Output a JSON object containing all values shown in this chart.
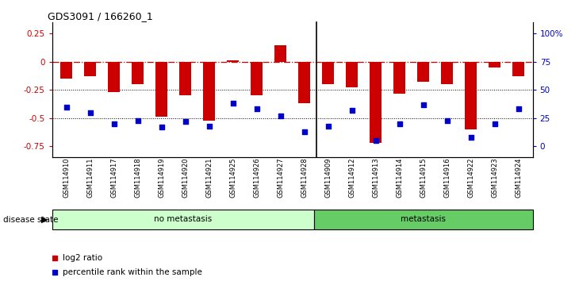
{
  "title": "GDS3091 / 166260_1",
  "samples": [
    "GSM114910",
    "GSM114911",
    "GSM114917",
    "GSM114918",
    "GSM114919",
    "GSM114920",
    "GSM114921",
    "GSM114925",
    "GSM114926",
    "GSM114927",
    "GSM114928",
    "GSM114909",
    "GSM114912",
    "GSM114913",
    "GSM114914",
    "GSM114915",
    "GSM114916",
    "GSM114922",
    "GSM114923",
    "GSM114924"
  ],
  "log2_ratio": [
    -0.15,
    -0.13,
    -0.27,
    -0.2,
    -0.49,
    -0.3,
    -0.52,
    0.01,
    -0.3,
    0.15,
    -0.37,
    -0.2,
    -0.23,
    -0.72,
    -0.28,
    -0.18,
    -0.2,
    -0.6,
    -0.05,
    -0.13
  ],
  "percentile_rank": [
    35,
    30,
    20,
    23,
    17,
    22,
    18,
    38,
    33,
    27,
    13,
    18,
    32,
    5,
    20,
    37,
    23,
    8,
    20,
    33
  ],
  "no_metastasis_count": 11,
  "metastasis_count": 9,
  "bar_color": "#cc0000",
  "marker_color": "#0000cc",
  "dashed_line_color": "#cc0000",
  "left_yticks": [
    0.25,
    0.0,
    -0.25,
    -0.5,
    -0.75
  ],
  "left_yticklabels": [
    "0.25",
    "0",
    "-0.25",
    "-0.5",
    "-0.75"
  ],
  "right_yticks_vals": [
    100,
    75,
    50,
    25,
    0
  ],
  "right_ytick_labels": [
    "100%",
    "75",
    "50",
    "25",
    "0"
  ],
  "right_yticks_pos": [
    0.25,
    0.0,
    -0.25,
    -0.5,
    -0.75
  ],
  "ylim": [
    -0.85,
    0.35
  ],
  "no_metastasis_color": "#ccffcc",
  "metastasis_color": "#66cc66",
  "bar_width": 0.5,
  "background_color": "#ffffff"
}
